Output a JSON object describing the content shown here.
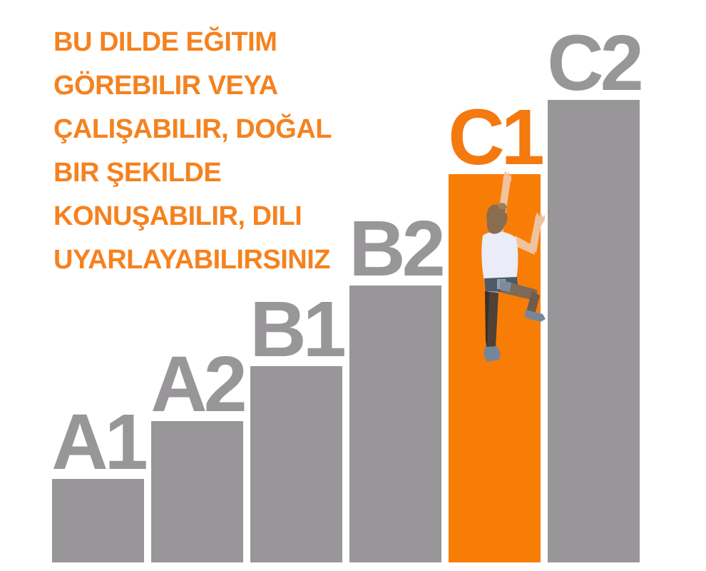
{
  "note": {
    "lines": [
      "BU DILDE EĞITIM",
      "GÖREBILIR VEYA",
      "ÇALIŞABILIR, DOĞAL",
      "BIR ŞEKILDE",
      "KONUŞABILIR, DILI",
      "UYARLAYABILIRSINIZ"
    ],
    "full_text": "BU DILDE EĞITIM GÖREBILIR VEYA ÇALIŞABILIR, DOĞAL BIR ŞEKILDE KONUŞABILIR, DILI UYARLAYABILIRSINIZ"
  },
  "chart_data": {
    "type": "bar",
    "title": "",
    "categories": [
      "A1",
      "A2",
      "B1",
      "B2",
      "C1",
      "C2"
    ],
    "values": [
      117,
      198,
      275,
      388,
      544,
      648
    ],
    "values_note": "relative stair heights in pixels, baseline at bottom",
    "highlighted_category": "C1",
    "legend_position": "none",
    "grid": false,
    "axes_visible": false
  },
  "illustration": {
    "name": "person-climbing-highlighted-bar",
    "description_icon": "climber-icon"
  },
  "colors": {
    "background": "#ffffff",
    "note_text": "#f5821f",
    "bar_gray": "#999699",
    "label_gray": "#999699",
    "bar_highlight": "#f87d06",
    "label_highlight": "#f4790f",
    "climber_skin": "#f1c29e",
    "climber_hair": "#8a6c4f",
    "climber_shirt": "#eaecf7",
    "climber_belt": "#4e5a66",
    "climber_pants_dark": "#4f4136",
    "climber_pants_light": "#7d6a58",
    "climber_shoes": "#75869b"
  }
}
